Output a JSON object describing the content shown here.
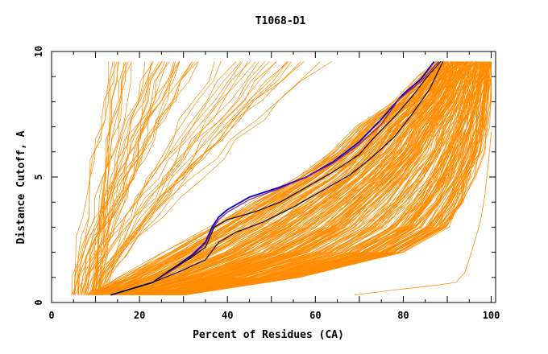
{
  "chart_data": {
    "type": "line",
    "title": "T1068-D1",
    "xlabel": "Percent of Residues (CA)",
    "ylabel": "Distance Cutoff, A",
    "xlim": [
      0,
      101
    ],
    "ylim": [
      0,
      10
    ],
    "x_ticks": [
      "0",
      "20",
      "40",
      "60",
      "80",
      "100"
    ],
    "y_ticks": [
      "0",
      "5",
      "10"
    ],
    "y_cap": 9.6,
    "colors": {
      "models": "#ff8c00",
      "highlight_blue": "#0000cc",
      "highlight_purple": "#8b1a8b",
      "highlight_black": "#000000"
    },
    "band_ensemble": {
      "count": 260,
      "y_levels": [
        0.3,
        1.0,
        2.0,
        3.0,
        4.0,
        5.0,
        6.0,
        7.0,
        8.0,
        9.0,
        9.6
      ],
      "lower_edge_x": [
        8,
        16,
        26,
        36,
        46,
        56,
        64,
        70,
        78,
        84,
        88
      ],
      "upper_edge_x": [
        30,
        56,
        80,
        90,
        94,
        96,
        98,
        99,
        99.5,
        99.8,
        100
      ],
      "jitter_pct": 1.2
    },
    "steep_ensemble": {
      "count": 55,
      "x_at_bottom_range": [
        4,
        12
      ],
      "x_at_top_range": [
        13,
        64
      ]
    },
    "series": [
      {
        "name": "",
        "color": "#ff8c00",
        "x": [
          69,
          78,
          88,
          92,
          94,
          95.5,
          96.5,
          97.5,
          98.5,
          99,
          99.5,
          99.8,
          100
        ],
        "y": [
          0.3,
          0.5,
          0.7,
          0.8,
          1.2,
          2.0,
          2.6,
          3.2,
          4.2,
          5.0,
          5.8,
          6.4,
          6.8
        ]
      },
      {
        "name": "",
        "color": "#0000cc",
        "x": [
          13.5,
          23,
          28,
          32,
          35,
          36.5,
          38,
          40,
          45,
          52,
          58,
          64,
          70,
          75,
          80,
          84,
          87
        ],
        "y": [
          0.3,
          0.8,
          1.4,
          1.9,
          2.4,
          3.0,
          3.4,
          3.7,
          4.2,
          4.6,
          5.0,
          5.6,
          6.4,
          7.3,
          8.3,
          8.9,
          9.6
        ]
      },
      {
        "name": "",
        "color": "#8b1a8b",
        "x": [
          13.5,
          23,
          28,
          32,
          35,
          36.5,
          38,
          40,
          45,
          52,
          58,
          64,
          70,
          75,
          79,
          84,
          88
        ],
        "y": [
          0.3,
          0.8,
          1.35,
          1.85,
          2.35,
          2.9,
          3.3,
          3.6,
          4.1,
          4.55,
          5.0,
          5.55,
          6.3,
          7.1,
          8.1,
          8.8,
          9.6
        ]
      },
      {
        "name": "",
        "color": "#000000",
        "x": [
          13.5,
          23,
          27,
          31,
          35,
          37,
          40,
          46,
          52,
          58,
          64,
          70,
          73,
          78,
          82,
          85,
          88.5
        ],
        "y": [
          0.3,
          0.8,
          1.3,
          1.7,
          2.2,
          3.0,
          3.3,
          3.6,
          4.0,
          4.6,
          5.2,
          5.9,
          6.5,
          7.4,
          8.2,
          8.9,
          9.6
        ]
      },
      {
        "name": "",
        "color": "#000000",
        "x": [
          13.5,
          23,
          30,
          35,
          38,
          42,
          48,
          55,
          62,
          68,
          73,
          78,
          82,
          86,
          89
        ],
        "y": [
          0.3,
          0.8,
          1.3,
          1.7,
          2.4,
          2.8,
          3.2,
          3.8,
          4.5,
          5.1,
          5.8,
          6.6,
          7.5,
          8.5,
          9.6
        ]
      }
    ]
  }
}
